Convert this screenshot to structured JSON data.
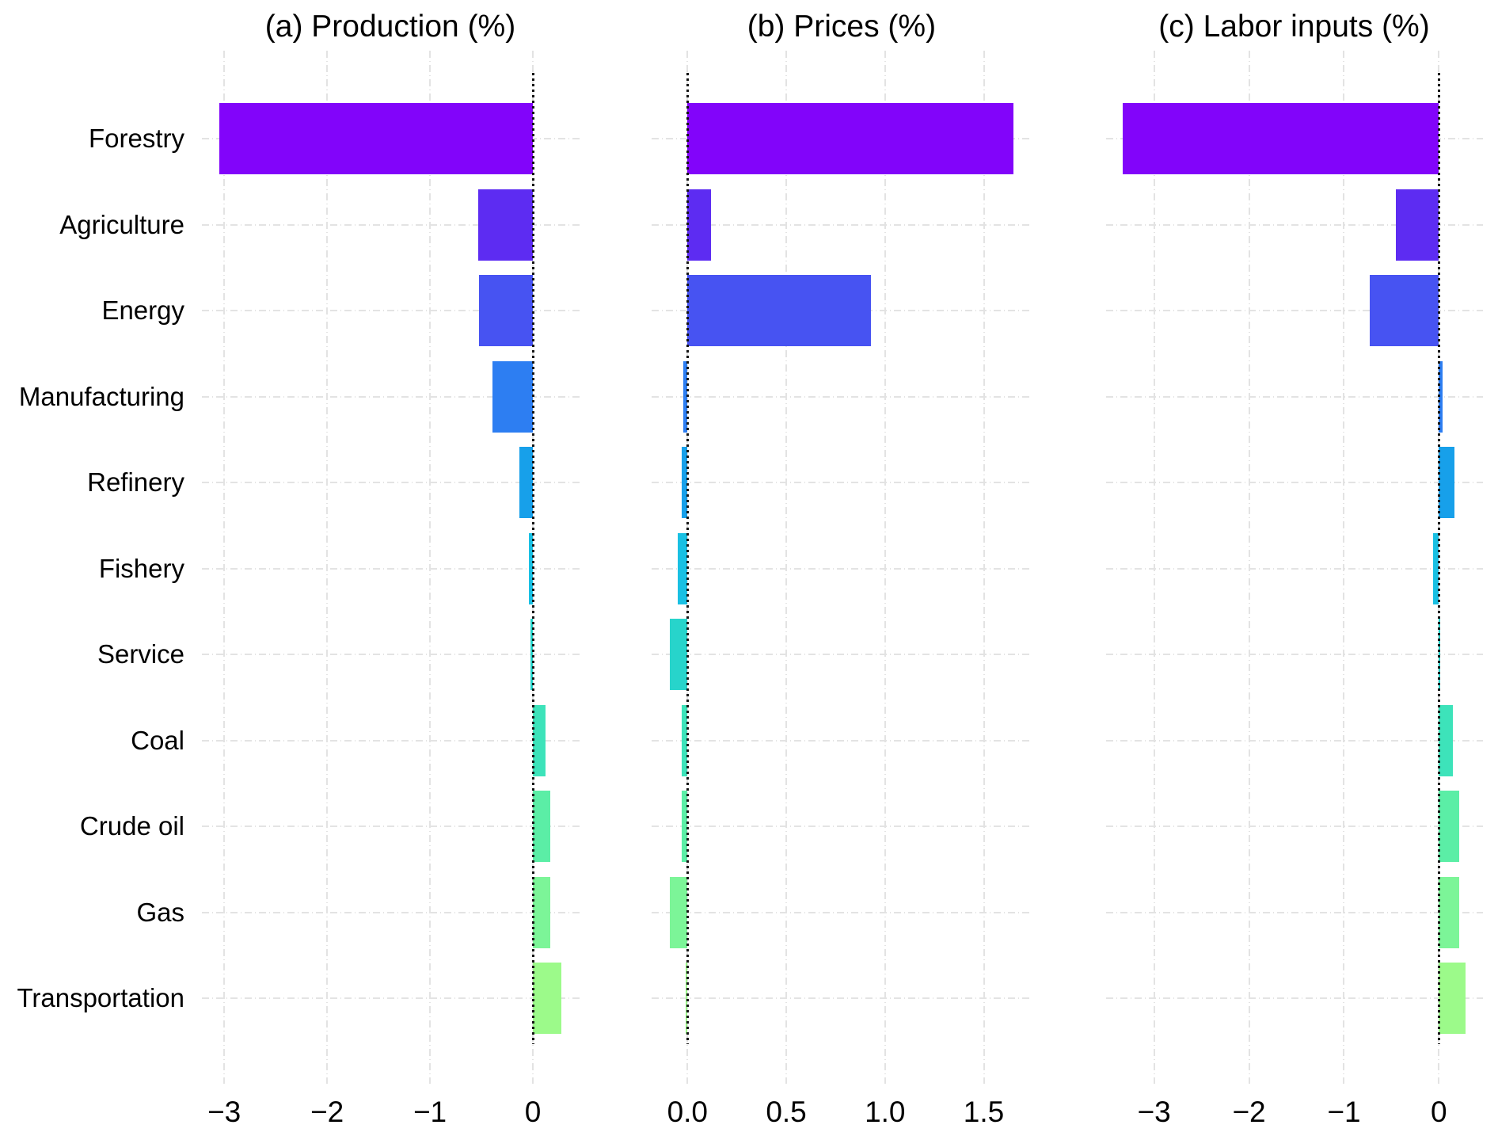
{
  "figure": {
    "background": "#ffffff"
  },
  "chart_data": {
    "type": "bar",
    "orientation": "horizontal",
    "title": "",
    "legend": false,
    "grid": true,
    "gridline_color": "#e3e3e3",
    "zero_line_color": "#141414",
    "categories": [
      "Forestry",
      "Agriculture",
      "Energy",
      "Manufacturing",
      "Refinery",
      "Fishery",
      "Service",
      "Coal",
      "Crude oil",
      "Gas",
      "Transportation"
    ],
    "bar_colors": [
      "#8204fa",
      "#5d2cf2",
      "#4753f2",
      "#2d7ef2",
      "#17a0ea",
      "#19c0e3",
      "#27d4cb",
      "#3de3ba",
      "#5beea6",
      "#7cf598",
      "#9cfa8a"
    ],
    "panels": [
      {
        "id": "a",
        "title": "(a) Production (%)",
        "xlim": [
          -3.22,
          0.45
        ],
        "ticks": [
          {
            "value": -3,
            "label": "−3"
          },
          {
            "value": -2,
            "label": "−2"
          },
          {
            "value": -1,
            "label": "−1"
          },
          {
            "value": 0,
            "label": "0"
          }
        ],
        "values": [
          -3.05,
          -0.53,
          -0.52,
          -0.39,
          -0.13,
          -0.04,
          -0.02,
          0.12,
          0.17,
          0.17,
          0.28
        ]
      },
      {
        "id": "b",
        "title": "(b) Prices (%)",
        "xlim": [
          -0.18,
          1.74
        ],
        "ticks": [
          {
            "value": 0,
            "label": "0.0"
          },
          {
            "value": 0.5,
            "label": "0.5"
          },
          {
            "value": 1,
            "label": "1.0"
          },
          {
            "value": 1.5,
            "label": "1.5"
          }
        ],
        "values": [
          1.65,
          0.12,
          0.93,
          -0.02,
          -0.03,
          -0.05,
          -0.09,
          -0.03,
          -0.03,
          -0.09,
          -0.01
        ]
      },
      {
        "id": "c",
        "title": "(c) Labor inputs (%)",
        "xlim": [
          -3.51,
          0.46
        ],
        "ticks": [
          {
            "value": -3,
            "label": "−3"
          },
          {
            "value": -2,
            "label": "−2"
          },
          {
            "value": -1,
            "label": "−1"
          },
          {
            "value": 0,
            "label": "0"
          }
        ],
        "values": [
          -3.33,
          -0.45,
          -0.73,
          0.04,
          0.16,
          -0.06,
          0.01,
          0.15,
          0.21,
          0.21,
          0.28
        ]
      }
    ]
  }
}
